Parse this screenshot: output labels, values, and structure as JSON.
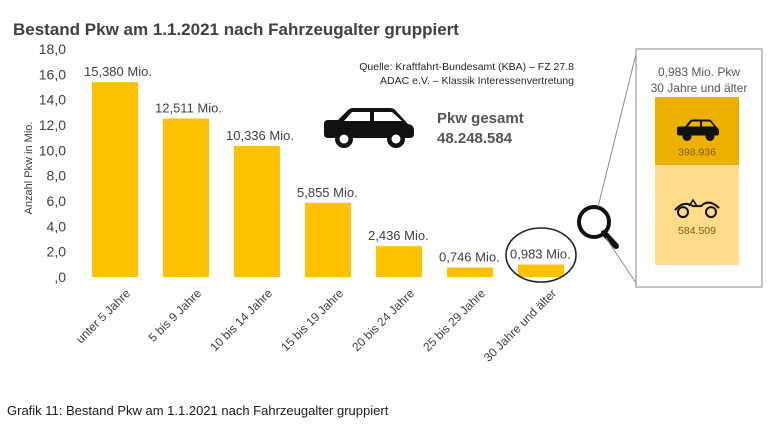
{
  "caption": "Grafik 11: Bestand Pkw am 1.1.2021 nach Fahrzeugalter gruppiert",
  "chart_data": {
    "type": "bar",
    "title": "Bestand Pkw am 1.1.2021 nach Fahrzeugalter gruppiert",
    "ylabel": "Anzahl Pkw in Mio.",
    "xlabel": "",
    "ylim": [
      0,
      18
    ],
    "yticks": [
      0,
      2,
      4,
      6,
      8,
      10,
      12,
      14,
      16,
      18
    ],
    "ytick_labels": [
      ",0",
      "2,0",
      "4,0",
      "6,0",
      "8,0",
      "10,0",
      "12,0",
      "14,0",
      "16,0",
      "18,0"
    ],
    "categories": [
      "unter 5 Jahre",
      "5 bis 9 Jahre",
      "10 bis 14 Jahre",
      "15 bis 19 Jahre",
      "20 bis 24 Jahre",
      "25 bis 29 Jahre",
      "30 Jahre und älter"
    ],
    "values": [
      15.38,
      12.511,
      10.336,
      5.855,
      2.436,
      0.746,
      0.983
    ],
    "data_labels": [
      "15,380 Mio.",
      "12,511 Mio.",
      "10,336 Mio.",
      "5,855 Mio.",
      "2,436 Mio.",
      "0,746 Mio.",
      "0,983 Mio."
    ],
    "bar_color": "#ffc000",
    "grid": false,
    "source_line1": "Quelle: Kraftfahrt-Bundesamt (KBA) – FZ 27.8",
    "source_line2": "ADAC e.V. – Klassik Interessenvertretung",
    "total_label": "Pkw gesamt",
    "total_value": "48.248.584",
    "car_icon": "car-icon",
    "magnifier_icon": "magnifier-icon",
    "inset": {
      "title_line1": "0,983 Mio. Pkw",
      "title_line2": "30 Jahre und älter",
      "segments": [
        {
          "icon": "modern-car-icon",
          "value": 398936,
          "label": "398.936",
          "color": "#ecb100"
        },
        {
          "icon": "vintage-car-icon",
          "value": 584509,
          "label": "584.509",
          "color": "#ffdb8a"
        }
      ]
    }
  }
}
